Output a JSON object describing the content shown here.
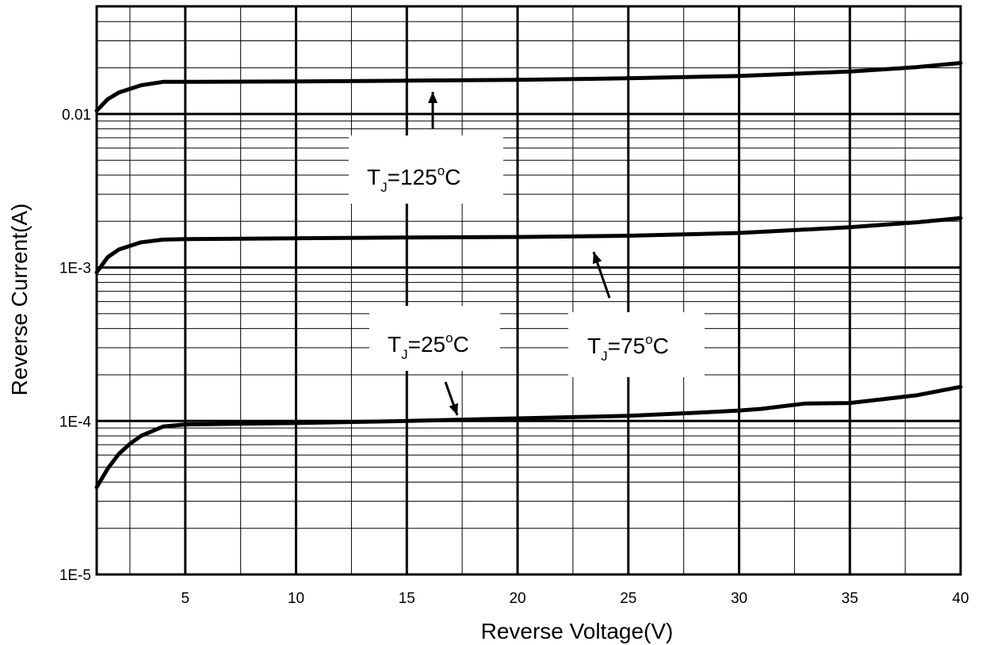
{
  "chart_data": {
    "type": "line",
    "title": "",
    "xlabel": "Reverse Voltage(V)",
    "ylabel": "Reverse Current(A)",
    "xlim": [
      1,
      40
    ],
    "ylim": [
      1e-05,
      0.05
    ],
    "yscale": "log",
    "grid": true,
    "x_ticks": [
      5,
      10,
      15,
      20,
      25,
      30,
      35,
      40
    ],
    "x_tick_labels": [
      "5",
      "10",
      "15",
      "20",
      "25",
      "30",
      "35",
      "40"
    ],
    "y_ticks": [
      1e-05,
      0.0001,
      0.001,
      0.01
    ],
    "y_tick_labels": [
      "1E-5",
      "1E-4",
      "1E-3",
      "0.01"
    ],
    "series": [
      {
        "name": "TJ=125°C",
        "x": [
          1,
          1.5,
          2,
          3,
          4,
          5,
          10,
          15,
          20,
          25,
          30,
          35,
          38,
          40
        ],
        "y": [
          0.0105,
          0.0125,
          0.0138,
          0.0154,
          0.0162,
          0.0162,
          0.0163,
          0.0165,
          0.0167,
          0.0171,
          0.0177,
          0.0189,
          0.0202,
          0.0215
        ]
      },
      {
        "name": "TJ=75°C",
        "x": [
          1,
          1.5,
          2,
          3,
          4,
          5,
          10,
          15,
          20,
          25,
          30,
          35,
          38,
          40
        ],
        "y": [
          0.00093,
          0.00117,
          0.00131,
          0.00146,
          0.00152,
          0.00153,
          0.00155,
          0.00157,
          0.00158,
          0.00161,
          0.00168,
          0.00183,
          0.00197,
          0.0021
        ]
      },
      {
        "name": "TJ=25°C",
        "x": [
          1,
          1.5,
          2,
          2.5,
          3,
          4,
          5,
          10,
          15,
          20,
          25,
          28,
          30,
          31,
          33,
          35,
          38,
          40
        ],
        "y": [
          3.7e-05,
          4.9e-05,
          6.1e-05,
          7.1e-05,
          8e-05,
          9.2e-05,
          9.5e-05,
          9.7e-05,
          0.0001,
          0.000104,
          0.000108,
          0.000113,
          0.000117,
          0.00012,
          0.00013,
          0.000131,
          0.000147,
          0.000167
        ]
      }
    ],
    "annotations": [
      {
        "main": "T",
        "sub": "J",
        "rest": "=125",
        "deg": "o",
        "unit": "C"
      },
      {
        "main": "T",
        "sub": "J",
        "rest": "=75",
        "deg": "o",
        "unit": "C"
      },
      {
        "main": "T",
        "sub": "J",
        "rest": "=25",
        "deg": "o",
        "unit": "C"
      }
    ]
  }
}
